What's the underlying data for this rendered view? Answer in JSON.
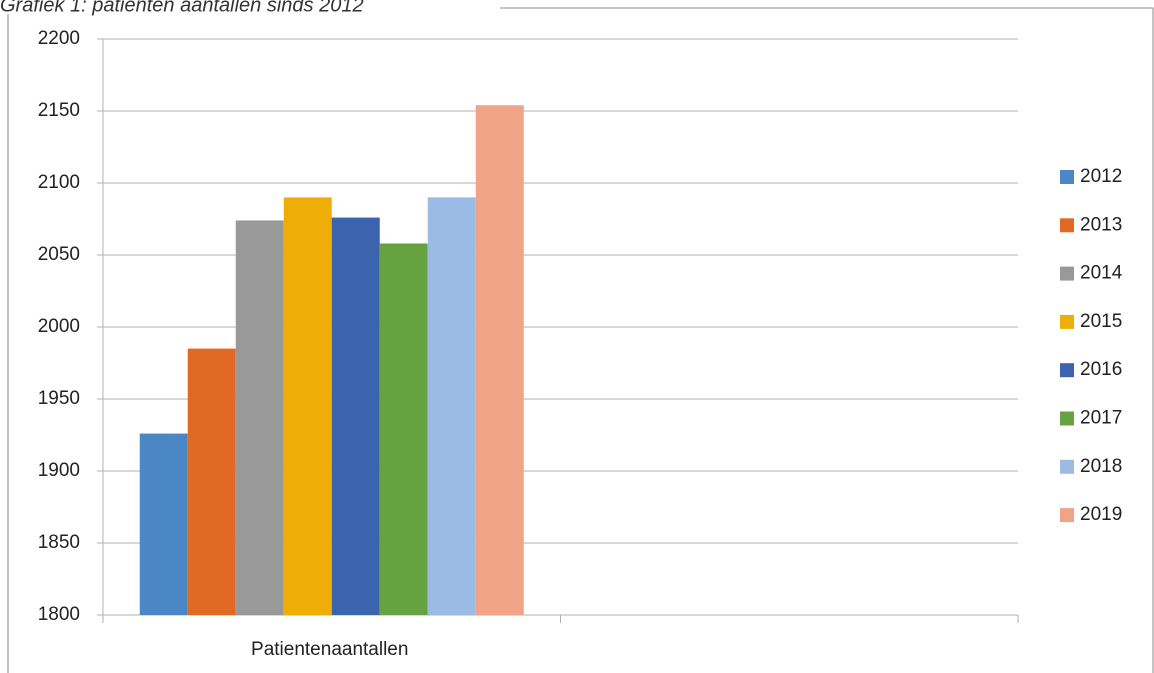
{
  "chart_data": {
    "type": "bar",
    "title": "Grafiek 1: patiënten aantallen sinds 2012",
    "categories": [
      "Patientenaantallen",
      null
    ],
    "series": [
      {
        "name": "2012",
        "color": "#4a87c4",
        "values": [
          1926,
          null
        ]
      },
      {
        "name": "2013",
        "color": "#e06a24",
        "values": [
          1985,
          null
        ]
      },
      {
        "name": "2014",
        "color": "#999999",
        "values": [
          2074,
          null
        ]
      },
      {
        "name": "2015",
        "color": "#efad08",
        "values": [
          2090,
          null
        ]
      },
      {
        "name": "2016",
        "color": "#3c63ad",
        "values": [
          2076,
          null
        ]
      },
      {
        "name": "2017",
        "color": "#67a240",
        "values": [
          2058,
          null
        ]
      },
      {
        "name": "2018",
        "color": "#9bbbe4",
        "values": [
          2090,
          null
        ]
      },
      {
        "name": "2019",
        "color": "#f0a386",
        "values": [
          2154,
          null
        ]
      }
    ],
    "ylim": [
      1800,
      2200
    ],
    "yticks": [
      1800,
      1850,
      1900,
      1950,
      2000,
      2050,
      2100,
      2150,
      2200
    ],
    "grid": true,
    "legend": "right"
  }
}
